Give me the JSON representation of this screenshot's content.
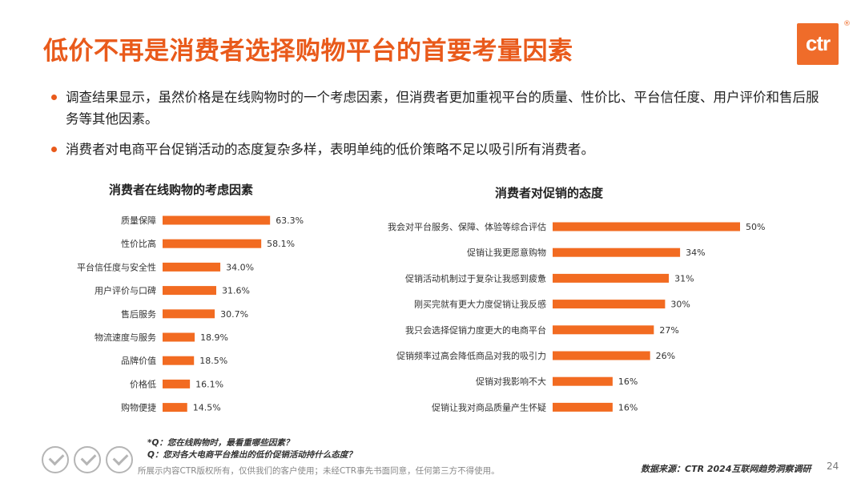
{
  "header": {
    "title": "低价不再是消费者选择购物平台的首要考量因素",
    "logo_text": "ctr",
    "logo_mark": "®"
  },
  "bullets": [
    "调查结果显示，虽然价格是在线购物时的一个考虑因素，但消费者更加重视平台的质量、性价比、平台信任度、用户评价和售后服务等其他因素。",
    "消费者对电商平台促销活动的态度复杂多样，表明单纯的低价策略不足以吸引所有消费者。"
  ],
  "colors": {
    "accent": "#e95a1b",
    "bar": "#f26b21"
  },
  "chart_data": [
    {
      "type": "bar",
      "orientation": "horizontal",
      "title": "消费者在线购物的考虑因素",
      "categories": [
        "质量保障",
        "性价比高",
        "平台信任度与安全性",
        "用户评价与口碑",
        "售后服务",
        "物流速度与服务",
        "品牌价值",
        "价格低",
        "购物便捷"
      ],
      "values": [
        63.3,
        58.1,
        34.0,
        31.6,
        30.7,
        18.9,
        18.5,
        16.1,
        14.5
      ],
      "labels": [
        "63.3%",
        "58.1%",
        "34.0%",
        "31.6%",
        "30.7%",
        "18.9%",
        "18.5%",
        "16.1%",
        "14.5%"
      ]
    },
    {
      "type": "bar",
      "orientation": "horizontal",
      "title": "消费者对促销的态度",
      "categories": [
        "我会对平台服务、保障、体验等综合评估",
        "促销让我更愿意购物",
        "促销活动机制过于复杂让我感到疲惫",
        "刚买完就有更大力度促销让我反感",
        "我只会选择促销力度更大的电商平台",
        "促销频率过高会降低商品对我的吸引力",
        "促销对我影响不大",
        "促销让我对商品质量产生怀疑"
      ],
      "values": [
        50,
        34,
        31,
        30,
        27,
        26,
        16,
        16
      ],
      "labels": [
        "50%",
        "34%",
        "31%",
        "30%",
        "27%",
        "26%",
        "16%",
        "16%"
      ]
    }
  ],
  "footer": {
    "q1": "*Q：您在线购物时，最看重哪些因素？",
    "q2": "Q：您对各大电商平台推出的低价促销活动持什么态度？",
    "copyright": "所展示内容CTR版权所有，仅供我们的客户使用；未经CTR事先书面同意，任何第三方不得使用。",
    "source": "数据来源：CTR 2024互联网趋势洞察调研",
    "page_number": "24"
  }
}
